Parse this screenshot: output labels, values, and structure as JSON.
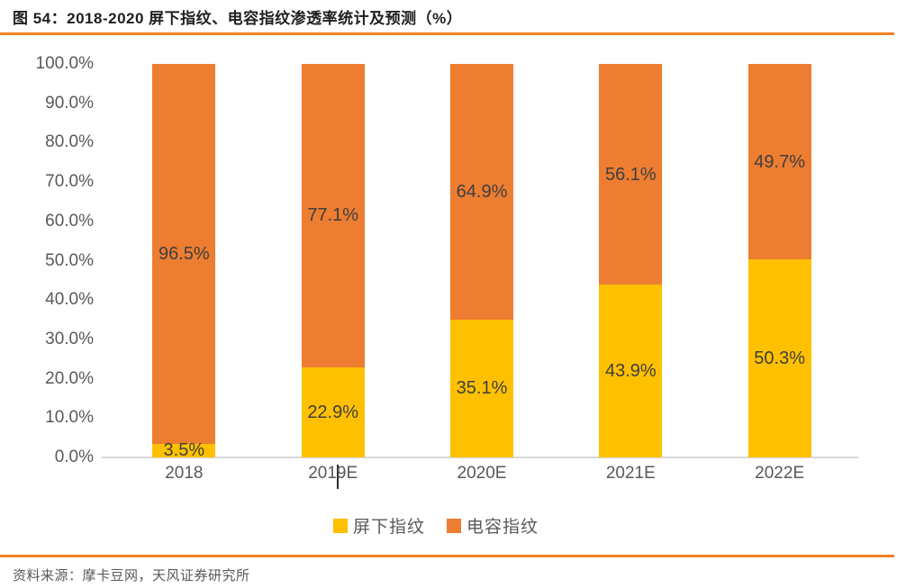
{
  "header": {
    "title": "图 54：2018-2020 屏下指纹、电容指纹渗透率统计及预测（%）"
  },
  "footer": {
    "source": "资料来源：摩卡豆网，天风证券研究所"
  },
  "colors": {
    "accent_rule": "#f08122",
    "under_display_yellow": "#FFC000",
    "capacitive_orange": "#ED7D31",
    "axis_text": "#595959",
    "data_label_text": "#3f3f3f",
    "axis_line": "#d9d9d9"
  },
  "chart_data": {
    "type": "bar",
    "stacked": true,
    "title": "2018-2020 屏下指纹、电容指纹渗透率统计及预测（%）",
    "categories": [
      "2018",
      "2019E",
      "2020E",
      "2021E",
      "2022E"
    ],
    "series": [
      {
        "name": "屏下指纹",
        "color": "#FFC000",
        "values": [
          3.5,
          22.9,
          35.1,
          43.9,
          50.3
        ]
      },
      {
        "name": "电容指纹",
        "color": "#ED7D31",
        "values": [
          96.5,
          77.1,
          64.9,
          56.1,
          49.7
        ]
      }
    ],
    "data_labels": [
      "3.5%",
      "96.5%",
      "22.9%",
      "77.1%",
      "35.1%",
      "64.9%",
      "43.9%",
      "56.1%",
      "50.3%",
      "49.7%"
    ],
    "ylabel": "",
    "xlabel": "",
    "ylim": [
      0,
      100
    ],
    "yticks": [
      "100.0%",
      "90.0%",
      "80.0%",
      "70.0%",
      "60.0%",
      "50.0%",
      "40.0%",
      "30.0%",
      "20.0%",
      "10.0%",
      "0.0%"
    ],
    "grid": false,
    "legend_position": "bottom",
    "value_suffix": "%"
  }
}
